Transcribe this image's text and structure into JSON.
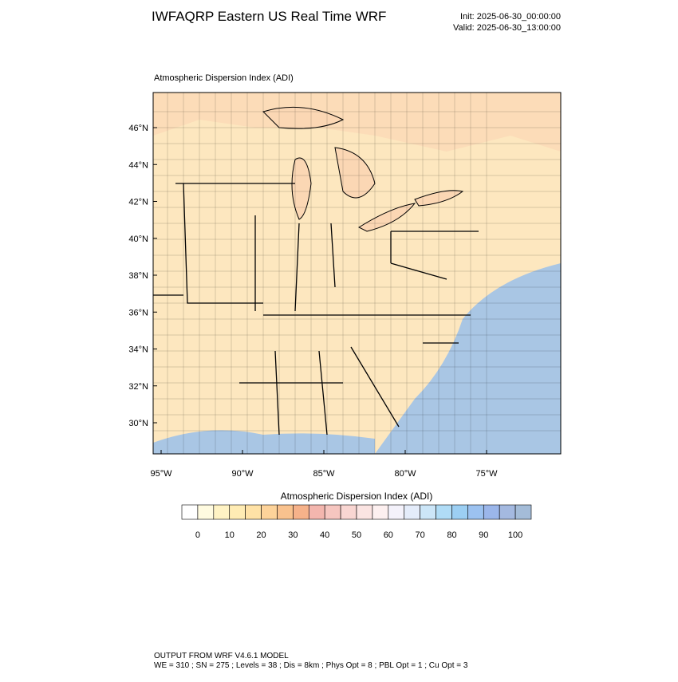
{
  "header": {
    "title": "IWFAQRP Eastern US Real Time WRF",
    "init": "Init: 2025-06-30_00:00:00",
    "valid": "Valid: 2025-06-30_13:00:00"
  },
  "map": {
    "subtitle": "Atmospheric Dispersion Index   (ADI)",
    "lat_labels": [
      "46°N",
      "44°N",
      "42°N",
      "40°N",
      "38°N",
      "36°N",
      "34°N",
      "32°N",
      "30°N"
    ],
    "lon_labels": [
      "95°W",
      "90°W",
      "85°W",
      "80°W",
      "75°W"
    ]
  },
  "colorbar": {
    "title": "Atmospheric Dispersion Index  (ADI)",
    "labels": [
      "0",
      "10",
      "20",
      "30",
      "40",
      "50",
      "60",
      "70",
      "80",
      "90",
      "100"
    ],
    "colors": [
      "#ffffff",
      "#fffbe0",
      "#fff3c4",
      "#ffecb4",
      "#ffe2a6",
      "#fdd39a",
      "#f9c28e",
      "#f6b28a",
      "#f3b6ae",
      "#f6c6c0",
      "#f9d6d2",
      "#fbe4e2",
      "#fdf0f0",
      "#f4f2fb",
      "#e4ecfa",
      "#cce6f8",
      "#b0dcf6",
      "#9ccff3",
      "#9cc2f0",
      "#9bb6ea",
      "#a4b9e0",
      "#a4bcd8"
    ]
  },
  "footer": {
    "line1": "OUTPUT FROM WRF V4.6.1 MODEL",
    "line2": "WE = 310 ; SN = 275 ; Levels = 38 ; Dis = 8km ; Phys Opt = 8 ; PBL Opt = 1 ; Cu Opt = 3"
  }
}
